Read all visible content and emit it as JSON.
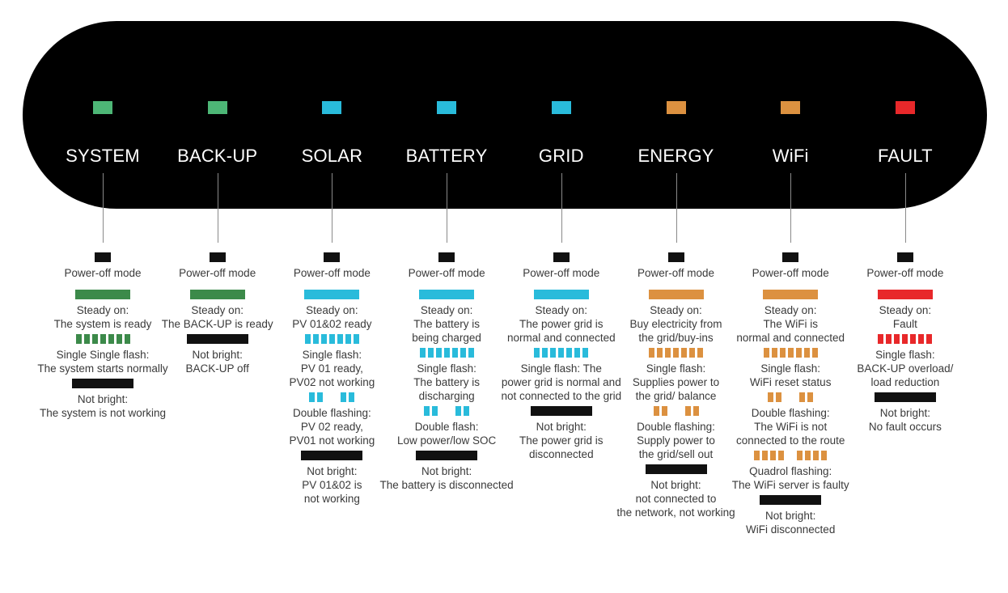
{
  "colors": {
    "panel": "#000000",
    "off": "#111111",
    "green": "#3c8a4a",
    "green_led": "#4db676",
    "cyan": "#29bbdb",
    "orange": "#dc9140",
    "red": "#e8282a"
  },
  "columns": [
    {
      "name": "SYSTEM",
      "led_color": "#4db676",
      "states": [
        {
          "pattern": "small",
          "color": "#111111",
          "lines": [
            "Power-off mode"
          ]
        },
        {
          "pattern": "steady",
          "color": "#3c8a4a",
          "lines": [
            "Steady on:",
            "The system is ready"
          ]
        },
        {
          "pattern": "single",
          "color": "#3c8a4a",
          "lines": [
            "Single Single flash:",
            "The system starts normally"
          ]
        },
        {
          "pattern": "off",
          "color": "#111111",
          "lines": [
            "Not bright:",
            "The system is not working"
          ]
        }
      ]
    },
    {
      "name": "BACK-UP",
      "led_color": "#4db676",
      "states": [
        {
          "pattern": "small",
          "color": "#111111",
          "lines": [
            "Power-off mode"
          ]
        },
        {
          "pattern": "steady",
          "color": "#3c8a4a",
          "lines": [
            "Steady on:",
            "The BACK-UP is ready"
          ]
        },
        {
          "pattern": "off",
          "color": "#111111",
          "lines": [
            "Not bright:",
            "BACK-UP off"
          ]
        }
      ]
    },
    {
      "name": "SOLAR",
      "led_color": "#29bbdb",
      "states": [
        {
          "pattern": "small",
          "color": "#111111",
          "lines": [
            "Power-off mode"
          ]
        },
        {
          "pattern": "steady",
          "color": "#29bbdb",
          "lines": [
            "Steady on:",
            "PV 01&02 ready"
          ]
        },
        {
          "pattern": "single",
          "color": "#29bbdb",
          "lines": [
            "Single flash:",
            "PV 01 ready,",
            "PV02 not working"
          ]
        },
        {
          "pattern": "double",
          "color": "#29bbdb",
          "lines": [
            "Double flashing:",
            "PV 02 ready,",
            "PV01 not working"
          ]
        },
        {
          "pattern": "off",
          "color": "#111111",
          "lines": [
            "Not bright:",
            "PV 01&02 is",
            "not working"
          ]
        }
      ]
    },
    {
      "name": "BATTERY",
      "led_color": "#29bbdb",
      "states": [
        {
          "pattern": "small",
          "color": "#111111",
          "lines": [
            "Power-off mode"
          ]
        },
        {
          "pattern": "steady",
          "color": "#29bbdb",
          "lines": [
            "Steady on:",
            "The battery is",
            "being charged"
          ]
        },
        {
          "pattern": "single",
          "color": "#29bbdb",
          "lines": [
            "Single flash:",
            "The battery is",
            "discharging"
          ]
        },
        {
          "pattern": "double",
          "color": "#29bbdb",
          "lines": [
            "Double flash:",
            "Low power/low SOC"
          ]
        },
        {
          "pattern": "off",
          "color": "#111111",
          "lines": [
            "Not bright:",
            "The battery is disconnected"
          ]
        }
      ]
    },
    {
      "name": "GRID",
      "led_color": "#29bbdb",
      "states": [
        {
          "pattern": "small",
          "color": "#111111",
          "lines": [
            "Power-off mode"
          ]
        },
        {
          "pattern": "steady",
          "color": "#29bbdb",
          "lines": [
            "Steady on:",
            "The power grid is",
            "normal and connected"
          ]
        },
        {
          "pattern": "single",
          "color": "#29bbdb",
          "lines": [
            "Single flash: The",
            "power grid is normal and",
            "not connected to the grid"
          ]
        },
        {
          "pattern": "off",
          "color": "#111111",
          "lines": [
            "Not bright:",
            "The power grid is",
            "disconnected"
          ]
        }
      ]
    },
    {
      "name": "ENERGY",
      "led_color": "#dc9140",
      "states": [
        {
          "pattern": "small",
          "color": "#111111",
          "lines": [
            "Power-off mode"
          ]
        },
        {
          "pattern": "steady",
          "color": "#dc9140",
          "lines": [
            "Steady on:",
            "Buy electricity from",
            "the grid/buy-ins"
          ]
        },
        {
          "pattern": "single",
          "color": "#dc9140",
          "lines": [
            "Single flash:",
            "Supplies power to",
            "the grid/ balance"
          ]
        },
        {
          "pattern": "double",
          "color": "#dc9140",
          "lines": [
            "Double flashing:",
            "Supply power to",
            "the grid/sell out"
          ]
        },
        {
          "pattern": "off",
          "color": "#111111",
          "lines": [
            "Not bright:",
            "not connected to",
            "the network, not working"
          ]
        }
      ]
    },
    {
      "name": "WiFi",
      "led_color": "#dc9140",
      "states": [
        {
          "pattern": "small",
          "color": "#111111",
          "lines": [
            "Power-off mode"
          ]
        },
        {
          "pattern": "steady",
          "color": "#dc9140",
          "lines": [
            "Steady on:",
            "The WiFi is",
            "normal and connected"
          ]
        },
        {
          "pattern": "single",
          "color": "#dc9140",
          "lines": [
            "Single flash:",
            "WiFi reset status"
          ]
        },
        {
          "pattern": "double",
          "color": "#dc9140",
          "lines": [
            "Double flashing:",
            "The WiFi is not",
            "connected to the route"
          ]
        },
        {
          "pattern": "quad",
          "color": "#dc9140",
          "lines": [
            "Quadrol flashing:",
            "The WiFi server is faulty"
          ]
        },
        {
          "pattern": "off",
          "color": "#111111",
          "lines": [
            "Not bright:",
            "WiFi disconnected"
          ]
        }
      ]
    },
    {
      "name": "FAULT",
      "led_color": "#e8282a",
      "states": [
        {
          "pattern": "small",
          "color": "#111111",
          "lines": [
            "Power-off mode"
          ]
        },
        {
          "pattern": "steady",
          "color": "#e8282a",
          "lines": [
            "Steady on:",
            "Fault"
          ]
        },
        {
          "pattern": "single",
          "color": "#e8282a",
          "lines": [
            "Single flash:",
            "BACK-UP overload/",
            "load reduction"
          ]
        },
        {
          "pattern": "off",
          "color": "#111111",
          "lines": [
            "Not bright:",
            "No fault occurs"
          ]
        }
      ]
    }
  ]
}
